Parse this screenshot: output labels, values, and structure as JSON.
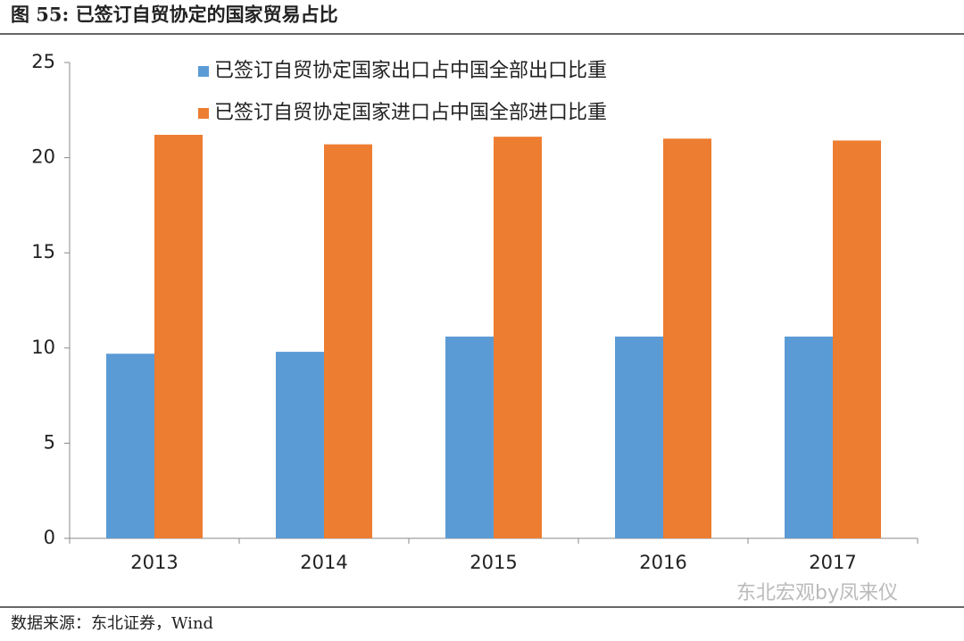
{
  "header": {
    "title": "图 55: 已签订自贸协定的国家贸易占比"
  },
  "chart_data": {
    "type": "bar",
    "categories": [
      "2013",
      "2014",
      "2015",
      "2016",
      "2017"
    ],
    "series": [
      {
        "name": "已签订自贸协定国家出口占中国全部出口比重",
        "color": "#5b9bd5",
        "values": [
          9.7,
          9.8,
          10.6,
          10.6,
          10.6
        ]
      },
      {
        "name": "已签订自贸协定国家进口占中国全部进口比重",
        "color": "#ed7d31",
        "values": [
          21.2,
          20.7,
          21.1,
          21.0,
          20.9
        ]
      }
    ],
    "ylim": [
      0,
      25
    ],
    "yticks": [
      0,
      5,
      10,
      15,
      20,
      25
    ],
    "grid": false,
    "legend": "top"
  },
  "footer": {
    "source": "数据来源：东北证券，Wind",
    "watermark": "东北宏观by凤来仪"
  }
}
